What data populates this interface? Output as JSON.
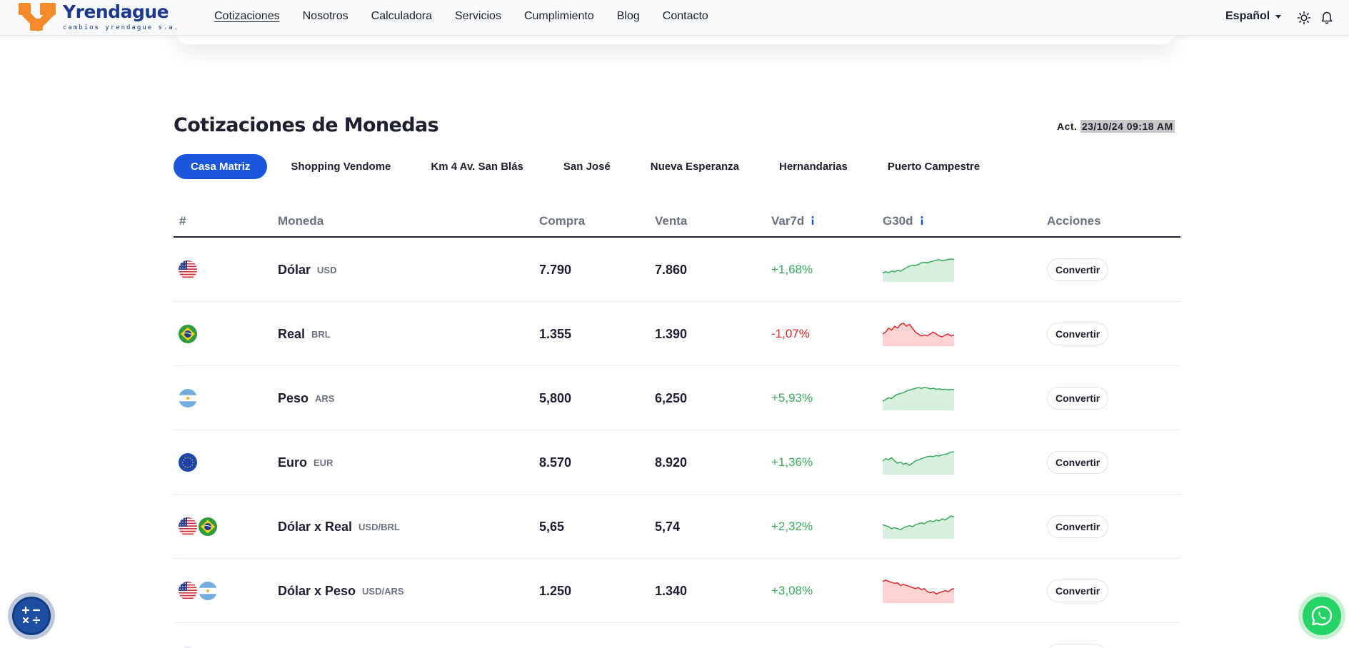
{
  "brand": {
    "name": "Yrendague",
    "tagline": "cambios yrendague s.a.",
    "colors": {
      "orange": "#f58a2b",
      "blue": "#1b3a8e",
      "accent": "#1a56db"
    }
  },
  "nav": {
    "items": [
      "Cotizaciones",
      "Nosotros",
      "Calculadora",
      "Servicios",
      "Cumplimiento",
      "Blog",
      "Contacto"
    ],
    "language": "Español",
    "icons": [
      "sun-icon",
      "bell-icon"
    ]
  },
  "main": {
    "title": "Cotizaciones de Monedas",
    "updated_label": "Act.",
    "updated_value": "23/10/24 09:18 AM",
    "branches": [
      "Casa Matriz",
      "Shopping Vendome",
      "Km 4 Av. San Blás",
      "San José",
      "Nueva Esperanza",
      "Hernandarias",
      "Puerto Campestre"
    ],
    "active_branch": "Casa Matriz"
  },
  "table": {
    "headers": {
      "index": "#",
      "currency": "Moneda",
      "buy": "Compra",
      "sell": "Venta",
      "var7d": "Var7d",
      "g30d": "G30d",
      "actions": "Acciones"
    },
    "rows": [
      {
        "flags": [
          "us"
        ],
        "name": "Dólar",
        "code": "USD",
        "buy": "7.790",
        "sell": "7.860",
        "var": "+1,68%",
        "trend": "up",
        "series": [
          2,
          2.5,
          2,
          3,
          2.5,
          3.5,
          3,
          4,
          5,
          6,
          6.5,
          6.3,
          7,
          8,
          8.2,
          8,
          8.5,
          9,
          9.5,
          9.8,
          9.2,
          9.5,
          10,
          10.2,
          10
        ]
      },
      {
        "flags": [
          "br"
        ],
        "name": "Real",
        "code": "BRL",
        "buy": "1.355",
        "sell": "1.390",
        "var": "-1,07%",
        "trend": "down",
        "series": [
          3,
          4,
          6,
          5,
          7,
          6,
          8,
          8.5,
          7,
          8,
          6,
          4,
          3,
          2,
          2.5,
          2,
          3,
          4,
          3,
          2,
          1.5,
          2.5,
          3,
          2,
          2.5
        ]
      },
      {
        "flags": [
          "ar"
        ],
        "name": "Peso",
        "code": "ARS",
        "buy": "5,800",
        "sell": "6,250",
        "var": "+5,93%",
        "trend": "up",
        "series": [
          2,
          3,
          4,
          3.5,
          5,
          6,
          6.5,
          7,
          8,
          8.5,
          9,
          9.5,
          10,
          9.5,
          10,
          9.8,
          9.2,
          9.5,
          9,
          9.2,
          8.8,
          9,
          8.6,
          8.9,
          8.7
        ]
      },
      {
        "flags": [
          "eu"
        ],
        "name": "Euro",
        "code": "EUR",
        "buy": "8.570",
        "sell": "8.920",
        "var": "+1,36%",
        "trend": "up",
        "series": [
          5,
          6,
          5.5,
          6.5,
          5,
          4,
          4.5,
          3.5,
          4,
          3,
          4,
          5,
          5.5,
          6,
          6.5,
          7,
          7.2,
          7,
          7.5,
          7.3,
          7.8,
          8,
          8.5,
          9,
          9.2
        ]
      },
      {
        "flags": [
          "us",
          "br"
        ],
        "name": "Dólar x Real",
        "code": "USD/BRL",
        "buy": "5,65",
        "sell": "5,74",
        "var": "+2,32%",
        "trend": "up",
        "series": [
          5,
          4.5,
          4,
          3,
          3.5,
          3,
          2.5,
          3.5,
          4,
          4.5,
          4,
          5,
          5.5,
          6,
          5.5,
          6.5,
          7,
          6.5,
          7.5,
          7,
          8,
          7.5,
          8.5,
          9.5,
          9
        ]
      },
      {
        "flags": [
          "us",
          "ar"
        ],
        "name": "Dólar x Peso",
        "code": "USD/ARS",
        "buy": "1.250",
        "sell": "1.340",
        "var": "+3,08%",
        "trend": "down",
        "series": [
          8,
          8.5,
          8,
          7.5,
          7,
          7.2,
          6,
          6.5,
          6,
          5.5,
          5,
          4.5,
          5,
          4,
          4.5,
          3,
          2.5,
          3,
          2,
          2.5,
          3,
          3.5,
          3,
          4,
          4.5
        ]
      }
    ],
    "action_label": "Convertir"
  },
  "floating": {
    "calculator_icon": "calculator-icon",
    "whatsapp_icon": "whatsapp-icon"
  }
}
